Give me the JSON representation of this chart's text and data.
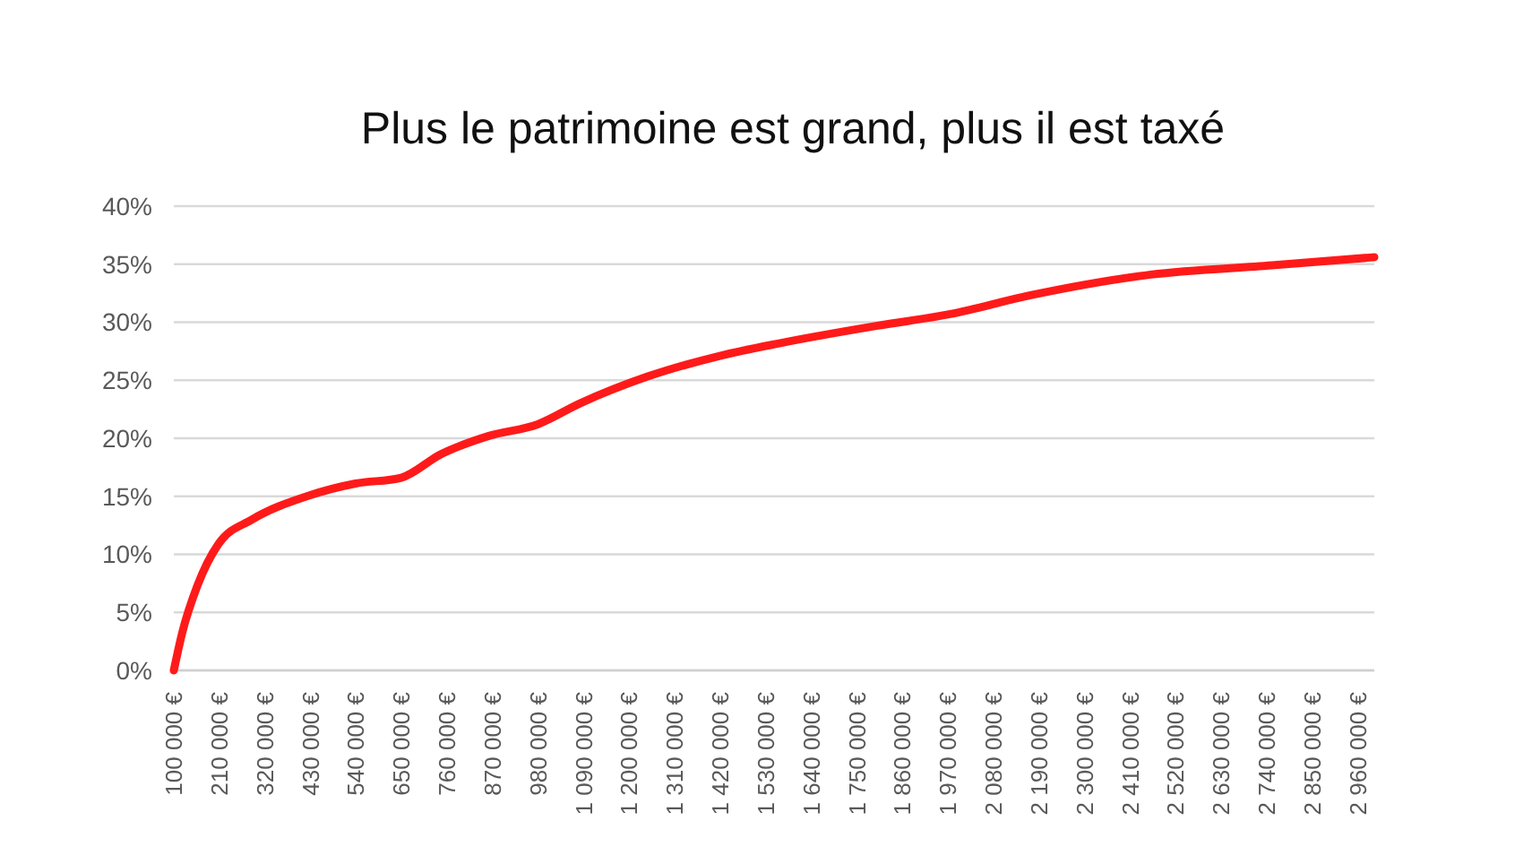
{
  "chart_data": {
    "type": "line",
    "title": "Plus le patrimoine est grand, plus il est taxé",
    "x": [
      100000,
      120000,
      157000,
      208000,
      289000,
      421000,
      539000,
      649000,
      744000,
      861000,
      979000,
      1081000,
      1243000,
      1419000,
      1565000,
      1800000,
      1976000,
      2167000,
      2460000,
      2753000,
      3000000
    ],
    "series": [
      {
        "color": "#ff1a1a",
        "values": [
          0,
          3.2,
          7.3,
          10.9,
          13,
          15,
          16.1,
          16.6,
          18.6,
          20.2,
          21.2,
          23,
          25.3,
          27.1,
          28.2,
          29.7,
          30.7,
          32.3,
          34.1,
          34.9,
          35.6
        ]
      }
    ],
    "xlim": [
      100000,
      3000000
    ],
    "xticks": [
      {
        "value": 100000,
        "label": "100 000 €"
      },
      {
        "value": 210000,
        "label": "210 000 €"
      },
      {
        "value": 320000,
        "label": "320 000 €"
      },
      {
        "value": 430000,
        "label": "430 000 €"
      },
      {
        "value": 540000,
        "label": "540 000 €"
      },
      {
        "value": 650000,
        "label": "650 000 €"
      },
      {
        "value": 760000,
        "label": "760 000 €"
      },
      {
        "value": 870000,
        "label": "870 000 €"
      },
      {
        "value": 980000,
        "label": "980 000 €"
      },
      {
        "value": 1090000,
        "label": "1 090 000 €"
      },
      {
        "value": 1200000,
        "label": "1 200 000 €"
      },
      {
        "value": 1310000,
        "label": "1 310 000 €"
      },
      {
        "value": 1420000,
        "label": "1 420 000 €"
      },
      {
        "value": 1530000,
        "label": "1 530 000 €"
      },
      {
        "value": 1640000,
        "label": "1 640 000 €"
      },
      {
        "value": 1750000,
        "label": "1 750 000 €"
      },
      {
        "value": 1860000,
        "label": "1 860 000 €"
      },
      {
        "value": 1970000,
        "label": "1 970 000 €"
      },
      {
        "value": 2080000,
        "label": "2 080 000 €"
      },
      {
        "value": 2190000,
        "label": "2 190 000 €"
      },
      {
        "value": 2300000,
        "label": "2 300 000 €"
      },
      {
        "value": 2410000,
        "label": "2 410 000 €"
      },
      {
        "value": 2520000,
        "label": "2 520 000 €"
      },
      {
        "value": 2630000,
        "label": "2 630 000 €"
      },
      {
        "value": 2740000,
        "label": "2 740 000 €"
      },
      {
        "value": 2850000,
        "label": "2 850 000 €"
      },
      {
        "value": 2960000,
        "label": "2 960 000 €"
      }
    ],
    "ylim": [
      0,
      40
    ],
    "yticks": [
      {
        "value": 0,
        "label": "0%"
      },
      {
        "value": 5,
        "label": "5%"
      },
      {
        "value": 10,
        "label": "10%"
      },
      {
        "value": 15,
        "label": "15%"
      },
      {
        "value": 20,
        "label": "20%"
      },
      {
        "value": 25,
        "label": "25%"
      },
      {
        "value": 30,
        "label": "30%"
      },
      {
        "value": 35,
        "label": "35%"
      },
      {
        "value": 40,
        "label": "40%"
      }
    ],
    "grid": "y",
    "marker": "none",
    "line_style": "solid"
  }
}
